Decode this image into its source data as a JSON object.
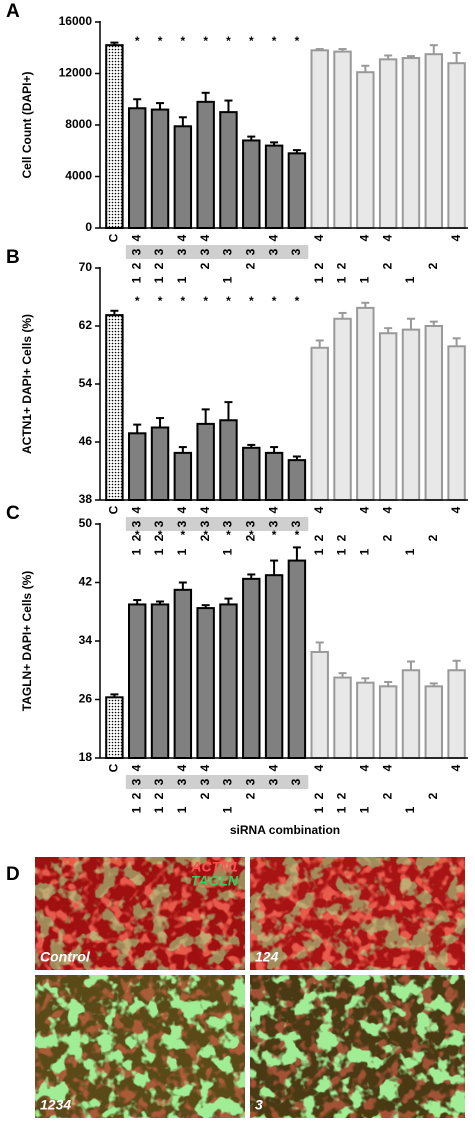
{
  "chart_data": [
    {
      "type": "bar",
      "panel": "A",
      "ylabel": "Cell Count (DAPI+)",
      "categories": [
        "C",
        [
          1,
          2,
          3,
          4
        ],
        [
          1,
          2,
          3
        ],
        [
          1,
          3,
          4
        ],
        [
          2,
          3,
          4
        ],
        [
          1,
          3
        ],
        [
          2,
          3
        ],
        [
          3,
          4
        ],
        [
          3
        ],
        [
          1,
          2,
          4
        ],
        [
          1,
          2
        ],
        [
          1,
          4
        ],
        [
          2,
          4
        ],
        [
          1
        ],
        [
          2
        ],
        [
          4
        ]
      ],
      "values": [
        14200,
        9300,
        9200,
        7900,
        9800,
        9000,
        6800,
        6400,
        5800,
        13800,
        13700,
        12100,
        13100,
        13200,
        13500,
        12800
      ],
      "errors": [
        200,
        700,
        500,
        700,
        700,
        900,
        300,
        250,
        250,
        100,
        200,
        500,
        300,
        150,
        700,
        800
      ],
      "colors": [
        "#ffffff",
        "#808080",
        "#808080",
        "#808080",
        "#808080",
        "#808080",
        "#808080",
        "#808080",
        "#808080",
        "#e8e8e8",
        "#e8e8e8",
        "#e8e8e8",
        "#e8e8e8",
        "#e8e8e8",
        "#e8e8e8",
        "#e8e8e8"
      ],
      "edge_colors": [
        "#000000",
        "#000000",
        "#000000",
        "#000000",
        "#000000",
        "#000000",
        "#000000",
        "#000000",
        "#000000",
        "#999999",
        "#999999",
        "#999999",
        "#999999",
        "#999999",
        "#999999",
        "#999999"
      ],
      "patterns": [
        "dots",
        null,
        null,
        null,
        null,
        null,
        null,
        null,
        null,
        null,
        null,
        null,
        null,
        null,
        null,
        null
      ],
      "ylim": [
        0,
        16000
      ],
      "yticks": [
        0,
        4000,
        8000,
        12000,
        16000
      ],
      "annotations": [
        {
          "index": 1,
          "text": "*"
        },
        {
          "index": 2,
          "text": "*"
        },
        {
          "index": 3,
          "text": "*"
        },
        {
          "index": 4,
          "text": "*"
        },
        {
          "index": 5,
          "text": "*"
        },
        {
          "index": 6,
          "text": "*"
        },
        {
          "index": 7,
          "text": "*"
        },
        {
          "index": 8,
          "text": "*"
        }
      ]
    },
    {
      "type": "bar",
      "panel": "B",
      "ylabel": "ACTN1+ DAPI+ Cells  (%)",
      "categories": [
        "C",
        [
          1,
          2,
          3,
          4
        ],
        [
          1,
          2,
          3
        ],
        [
          1,
          3,
          4
        ],
        [
          2,
          3,
          4
        ],
        [
          1,
          3
        ],
        [
          2,
          3
        ],
        [
          3,
          4
        ],
        [
          3
        ],
        [
          1,
          2,
          4
        ],
        [
          1,
          2
        ],
        [
          1,
          4
        ],
        [
          2,
          4
        ],
        [
          1
        ],
        [
          2
        ],
        [
          4
        ]
      ],
      "values": [
        63.5,
        47.2,
        48,
        44.5,
        48.5,
        49,
        45.2,
        44.5,
        43.5,
        59,
        63,
        64.5,
        61,
        61.5,
        62,
        59.2
      ],
      "errors": [
        0.6,
        1.2,
        1.3,
        0.8,
        2,
        2.5,
        0.4,
        0.8,
        0.5,
        1,
        0.8,
        0.7,
        0.7,
        1.5,
        0.6,
        1.1
      ],
      "colors": [
        "#ffffff",
        "#808080",
        "#808080",
        "#808080",
        "#808080",
        "#808080",
        "#808080",
        "#808080",
        "#808080",
        "#e8e8e8",
        "#e8e8e8",
        "#e8e8e8",
        "#e8e8e8",
        "#e8e8e8",
        "#e8e8e8",
        "#e8e8e8"
      ],
      "edge_colors": [
        "#000000",
        "#000000",
        "#000000",
        "#000000",
        "#000000",
        "#000000",
        "#000000",
        "#000000",
        "#000000",
        "#999999",
        "#999999",
        "#999999",
        "#999999",
        "#999999",
        "#999999",
        "#999999"
      ],
      "patterns": [
        "dots",
        null,
        null,
        null,
        null,
        null,
        null,
        null,
        null,
        null,
        null,
        null,
        null,
        null,
        null,
        null
      ],
      "ylim": [
        38,
        70
      ],
      "yticks": [
        38,
        46,
        54,
        62,
        70
      ],
      "annotations": [
        {
          "index": 1,
          "text": "*"
        },
        {
          "index": 2,
          "text": "*"
        },
        {
          "index": 3,
          "text": "*"
        },
        {
          "index": 4,
          "text": "*"
        },
        {
          "index": 5,
          "text": "*"
        },
        {
          "index": 6,
          "text": "*"
        },
        {
          "index": 7,
          "text": "*"
        },
        {
          "index": 8,
          "text": "*"
        }
      ]
    },
    {
      "type": "bar",
      "panel": "C",
      "ylabel": "TAGLN+ DAPI+ Cells  (%)",
      "xlabel": "siRNA combination",
      "categories": [
        "C",
        [
          1,
          2,
          3,
          4
        ],
        [
          1,
          2,
          3
        ],
        [
          1,
          3,
          4
        ],
        [
          2,
          3,
          4
        ],
        [
          1,
          3
        ],
        [
          2,
          3
        ],
        [
          3,
          4
        ],
        [
          3
        ],
        [
          1,
          2,
          4
        ],
        [
          1,
          2
        ],
        [
          1,
          4
        ],
        [
          2,
          4
        ],
        [
          1
        ],
        [
          2
        ],
        [
          4
        ]
      ],
      "values": [
        26.3,
        39,
        39,
        41,
        38.5,
        39,
        42.5,
        43,
        45,
        32.5,
        29,
        28.3,
        27.8,
        30,
        27.8,
        30
      ],
      "errors": [
        0.4,
        0.6,
        0.4,
        1,
        0.4,
        0.8,
        0.6,
        2,
        1.8,
        1.3,
        0.6,
        0.6,
        0.6,
        1.2,
        0.4,
        1.3
      ],
      "colors": [
        "#ffffff",
        "#808080",
        "#808080",
        "#808080",
        "#808080",
        "#808080",
        "#808080",
        "#808080",
        "#808080",
        "#e8e8e8",
        "#e8e8e8",
        "#e8e8e8",
        "#e8e8e8",
        "#e8e8e8",
        "#e8e8e8",
        "#e8e8e8"
      ],
      "edge_colors": [
        "#000000",
        "#000000",
        "#000000",
        "#000000",
        "#000000",
        "#000000",
        "#000000",
        "#000000",
        "#000000",
        "#999999",
        "#999999",
        "#999999",
        "#999999",
        "#999999",
        "#999999",
        "#999999"
      ],
      "patterns": [
        "dots",
        null,
        null,
        null,
        null,
        null,
        null,
        null,
        null,
        null,
        null,
        null,
        null,
        null,
        null,
        null
      ],
      "ylim": [
        18,
        50
      ],
      "yticks": [
        18,
        26,
        34,
        42,
        50
      ],
      "annotations": [
        {
          "index": 1,
          "text": "*"
        },
        {
          "index": 2,
          "text": "*"
        },
        {
          "index": 3,
          "text": "*"
        },
        {
          "index": 4,
          "text": "*"
        },
        {
          "index": 5,
          "text": "*"
        },
        {
          "index": 6,
          "text": "*"
        },
        {
          "index": 7,
          "text": "*"
        },
        {
          "index": 8,
          "text": "*"
        }
      ]
    }
  ],
  "panel_d": {
    "panel": "D",
    "legend": [
      "ACTN1",
      "TAGLN"
    ],
    "legend_colors": [
      "#ff5050",
      "#30d060"
    ],
    "images": [
      "Control",
      "124",
      "1234",
      "3"
    ]
  }
}
